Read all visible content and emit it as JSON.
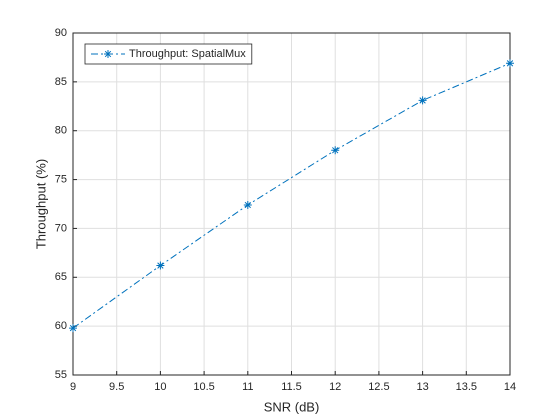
{
  "chart_data": {
    "type": "line",
    "xlabel": "SNR (dB)",
    "ylabel": "Throughput (%)",
    "x": [
      9,
      10,
      11,
      12,
      13,
      14
    ],
    "series": [
      {
        "name": "Throughput: SpatialMux",
        "color": "#0072bd",
        "values": [
          59.8,
          66.2,
          72.4,
          78.0,
          83.1,
          86.9
        ]
      }
    ],
    "xlim": [
      9,
      14
    ],
    "ylim": [
      55,
      90
    ],
    "xticks": [
      9,
      9.5,
      10,
      10.5,
      11,
      11.5,
      12,
      12.5,
      13,
      13.5,
      14
    ],
    "yticks": [
      55,
      60,
      65,
      70,
      75,
      80,
      85,
      90
    ],
    "grid": true,
    "legend": "northwest",
    "line_style": "dash-dot",
    "marker": "star"
  }
}
